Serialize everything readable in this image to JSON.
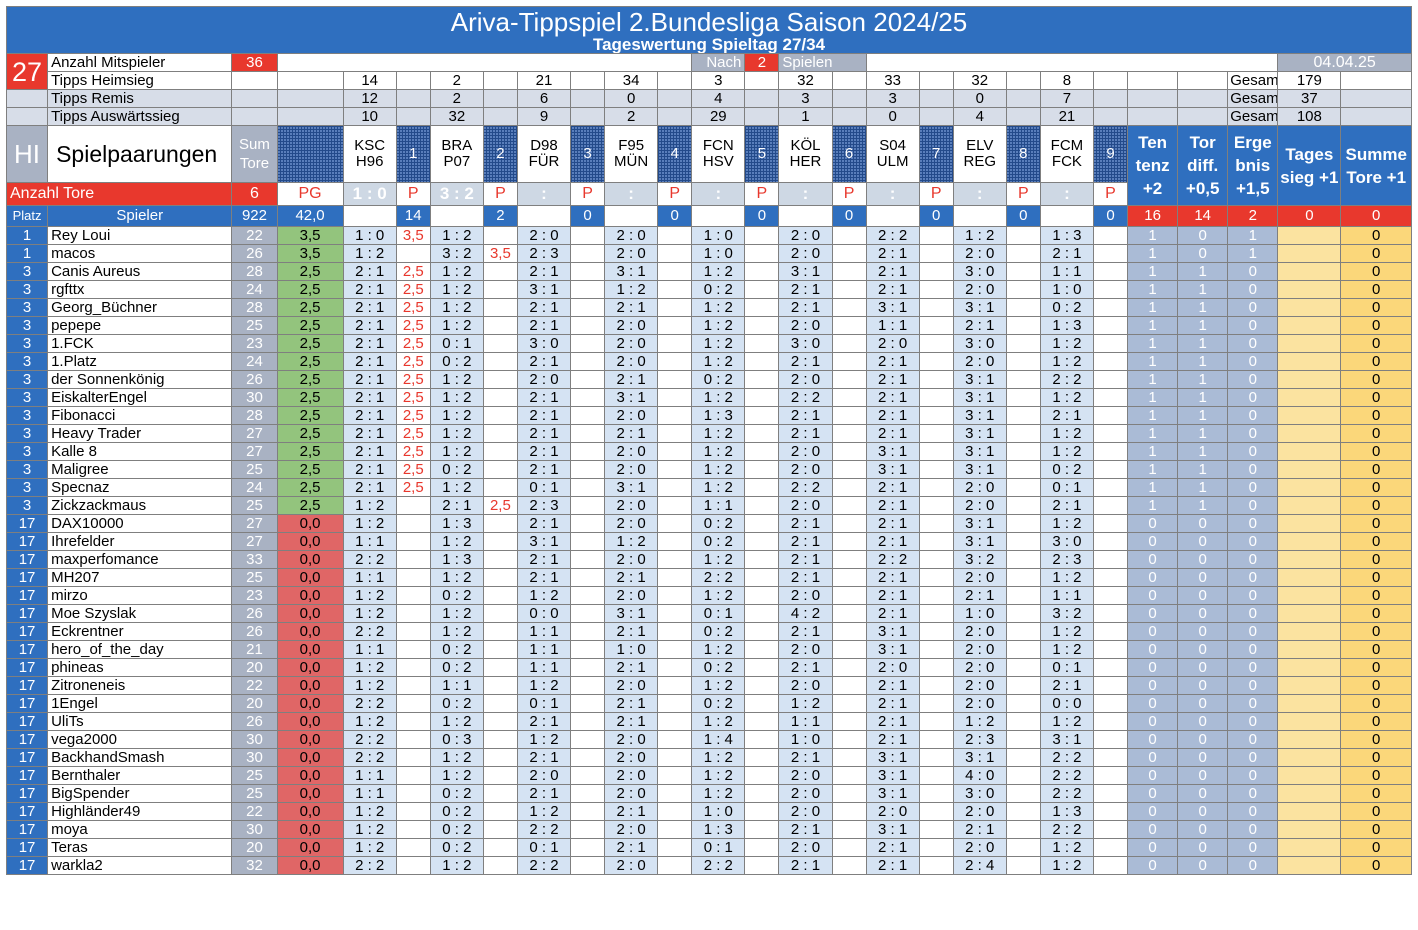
{
  "title": "Ariva-Tippspiel 2.Bundesliga Saison 2024/25",
  "subtitle": "Tageswertung Spieltag 27/34",
  "spieltag": "27",
  "date": "04.04.25",
  "mitspieler_label": "Anzahl Mitspieler",
  "mitspieler": "36",
  "nach_label": "Nach",
  "nach_value": "2",
  "spielen_label": "Spielen",
  "heim_label": "Tipps Heimsieg",
  "remis_label": "Tipps Remis",
  "aus_label": "Tipps Auswärtssieg",
  "gesamt_label": "Gesamt",
  "heim": [
    "14",
    "2",
    "21",
    "34",
    "3",
    "32",
    "33",
    "32",
    "8"
  ],
  "remis": [
    "12",
    "2",
    "6",
    "0",
    "4",
    "3",
    "3",
    "0",
    "7"
  ],
  "aus": [
    "10",
    "32",
    "9",
    "2",
    "29",
    "1",
    "0",
    "4",
    "21"
  ],
  "gesamt": [
    "179",
    "37",
    "108"
  ],
  "hi": "HI",
  "spielpaarungen": "Spielpaarungen",
  "sum_tore": "Sum Tore",
  "matches": [
    [
      "KSC",
      "H96"
    ],
    [
      "BRA",
      "P07"
    ],
    [
      "D98",
      "FÜR"
    ],
    [
      "F95",
      "MÜN"
    ],
    [
      "FCN",
      "HSV"
    ],
    [
      "KÖL",
      "HER"
    ],
    [
      "S04",
      "ULM"
    ],
    [
      "ELV",
      "REG"
    ],
    [
      "FCM",
      "FCK"
    ]
  ],
  "match_nums": [
    "1",
    "2",
    "3",
    "4",
    "5",
    "6",
    "7",
    "8",
    "9"
  ],
  "bonus_headers": [
    "Ten tenz +2",
    "Tor diff. +0,5",
    "Erge bnis +1,5",
    "Tages sieg +1",
    "Summe Tore +1"
  ],
  "anzahl_tore_label": "Anzahl Tore",
  "anzahl_tore": "6",
  "pg_label": "PG",
  "results": [
    "1 : 0",
    "3 : 2",
    ":",
    ":",
    ":",
    ":",
    ":",
    ":",
    ":"
  ],
  "p_label": "P",
  "platz_label": "Platz",
  "spieler_label": "Spieler",
  "total_tore": "922",
  "total_pg": "42,0",
  "match_points": [
    "14",
    "2",
    "0",
    "0",
    "0",
    "0",
    "0",
    "0",
    "0"
  ],
  "bonus_totals": [
    "16",
    "14",
    "2",
    "0",
    "0"
  ],
  "players": [
    {
      "platz": "1",
      "name": "Rey Loui",
      "tore": "22",
      "pg": "3,5",
      "tips": [
        "1 : 0",
        "1 : 2",
        "2 : 0",
        "2 : 0",
        "1 : 0",
        "2 : 0",
        "2 : 2",
        "1 : 2",
        "1 : 3"
      ],
      "p": [
        "3,5",
        "",
        "",
        "",
        "",
        "",
        "",
        "",
        ""
      ],
      "b": [
        "1",
        "0",
        "1",
        "",
        "0"
      ]
    },
    {
      "platz": "1",
      "name": "macos",
      "tore": "26",
      "pg": "3,5",
      "tips": [
        "1 : 2",
        "3 : 2",
        "2 : 3",
        "2 : 0",
        "1 : 0",
        "2 : 0",
        "2 : 1",
        "2 : 0",
        "2 : 1"
      ],
      "p": [
        "",
        "3,5",
        "",
        "",
        "",
        "",
        "",
        "",
        ""
      ],
      "b": [
        "1",
        "0",
        "1",
        "",
        "0"
      ]
    },
    {
      "platz": "3",
      "name": "Canis Aureus",
      "tore": "28",
      "pg": "2,5",
      "tips": [
        "2 : 1",
        "1 : 2",
        "2 : 1",
        "3 : 1",
        "1 : 2",
        "3 : 1",
        "2 : 1",
        "3 : 0",
        "1 : 1"
      ],
      "p": [
        "2,5",
        "",
        "",
        "",
        "",
        "",
        "",
        "",
        ""
      ],
      "b": [
        "1",
        "1",
        "0",
        "",
        "0"
      ]
    },
    {
      "platz": "3",
      "name": "rgfttx",
      "tore": "24",
      "pg": "2,5",
      "tips": [
        "2 : 1",
        "1 : 2",
        "3 : 1",
        "1 : 2",
        "0 : 2",
        "2 : 1",
        "2 : 1",
        "2 : 0",
        "1 : 0"
      ],
      "p": [
        "2,5",
        "",
        "",
        "",
        "",
        "",
        "",
        "",
        ""
      ],
      "b": [
        "1",
        "1",
        "0",
        "",
        "0"
      ]
    },
    {
      "platz": "3",
      "name": "Georg_Büchner",
      "tore": "28",
      "pg": "2,5",
      "tips": [
        "2 : 1",
        "1 : 2",
        "2 : 1",
        "2 : 1",
        "1 : 2",
        "2 : 1",
        "3 : 1",
        "3 : 1",
        "0 : 2"
      ],
      "p": [
        "2,5",
        "",
        "",
        "",
        "",
        "",
        "",
        "",
        ""
      ],
      "b": [
        "1",
        "1",
        "0",
        "",
        "0"
      ]
    },
    {
      "platz": "3",
      "name": "pepepe",
      "tore": "25",
      "pg": "2,5",
      "tips": [
        "2 : 1",
        "1 : 2",
        "2 : 1",
        "2 : 0",
        "1 : 2",
        "2 : 0",
        "1 : 1",
        "2 : 1",
        "1 : 3"
      ],
      "p": [
        "2,5",
        "",
        "",
        "",
        "",
        "",
        "",
        "",
        ""
      ],
      "b": [
        "1",
        "1",
        "0",
        "",
        "0"
      ]
    },
    {
      "platz": "3",
      "name": "1.FCK",
      "tore": "23",
      "pg": "2,5",
      "tips": [
        "2 : 1",
        "0 : 1",
        "3 : 0",
        "2 : 0",
        "1 : 2",
        "3 : 0",
        "2 : 0",
        "3 : 0",
        "1 : 2"
      ],
      "p": [
        "2,5",
        "",
        "",
        "",
        "",
        "",
        "",
        "",
        ""
      ],
      "b": [
        "1",
        "1",
        "0",
        "",
        "0"
      ]
    },
    {
      "platz": "3",
      "name": "1.Platz",
      "tore": "24",
      "pg": "2,5",
      "tips": [
        "2 : 1",
        "0 : 2",
        "2 : 1",
        "2 : 0",
        "1 : 2",
        "2 : 1",
        "2 : 1",
        "2 : 0",
        "1 : 2"
      ],
      "p": [
        "2,5",
        "",
        "",
        "",
        "",
        "",
        "",
        "",
        ""
      ],
      "b": [
        "1",
        "1",
        "0",
        "",
        "0"
      ]
    },
    {
      "platz": "3",
      "name": "der Sonnenkönig",
      "tore": "26",
      "pg": "2,5",
      "tips": [
        "2 : 1",
        "1 : 2",
        "2 : 0",
        "2 : 1",
        "0 : 2",
        "2 : 0",
        "2 : 1",
        "3 : 1",
        "2 : 2"
      ],
      "p": [
        "2,5",
        "",
        "",
        "",
        "",
        "",
        "",
        "",
        ""
      ],
      "b": [
        "1",
        "1",
        "0",
        "",
        "0"
      ]
    },
    {
      "platz": "3",
      "name": "EiskalterEngel",
      "tore": "30",
      "pg": "2,5",
      "tips": [
        "2 : 1",
        "1 : 2",
        "2 : 1",
        "3 : 1",
        "1 : 2",
        "2 : 2",
        "2 : 1",
        "3 : 1",
        "1 : 2"
      ],
      "p": [
        "2,5",
        "",
        "",
        "",
        "",
        "",
        "",
        "",
        ""
      ],
      "b": [
        "1",
        "1",
        "0",
        "",
        "0"
      ]
    },
    {
      "platz": "3",
      "name": "Fibonacci",
      "tore": "28",
      "pg": "2,5",
      "tips": [
        "2 : 1",
        "1 : 2",
        "2 : 1",
        "2 : 0",
        "1 : 3",
        "2 : 1",
        "2 : 1",
        "3 : 1",
        "2 : 1"
      ],
      "p": [
        "2,5",
        "",
        "",
        "",
        "",
        "",
        "",
        "",
        ""
      ],
      "b": [
        "1",
        "1",
        "0",
        "",
        "0"
      ]
    },
    {
      "platz": "3",
      "name": "Heavy Trader",
      "tore": "27",
      "pg": "2,5",
      "tips": [
        "2 : 1",
        "1 : 2",
        "2 : 1",
        "2 : 1",
        "1 : 2",
        "2 : 1",
        "2 : 1",
        "3 : 1",
        "1 : 2"
      ],
      "p": [
        "2,5",
        "",
        "",
        "",
        "",
        "",
        "",
        "",
        ""
      ],
      "b": [
        "1",
        "1",
        "0",
        "",
        "0"
      ]
    },
    {
      "platz": "3",
      "name": "Kalle 8",
      "tore": "27",
      "pg": "2,5",
      "tips": [
        "2 : 1",
        "1 : 2",
        "2 : 1",
        "2 : 0",
        "1 : 2",
        "2 : 0",
        "3 : 1",
        "3 : 1",
        "1 : 2"
      ],
      "p": [
        "2,5",
        "",
        "",
        "",
        "",
        "",
        "",
        "",
        ""
      ],
      "b": [
        "1",
        "1",
        "0",
        "",
        "0"
      ]
    },
    {
      "platz": "3",
      "name": "Maligree",
      "tore": "25",
      "pg": "2,5",
      "tips": [
        "2 : 1",
        "0 : 2",
        "2 : 1",
        "2 : 0",
        "1 : 2",
        "2 : 0",
        "3 : 1",
        "3 : 1",
        "0 : 2"
      ],
      "p": [
        "2,5",
        "",
        "",
        "",
        "",
        "",
        "",
        "",
        ""
      ],
      "b": [
        "1",
        "1",
        "0",
        "",
        "0"
      ]
    },
    {
      "platz": "3",
      "name": "Specnaz",
      "tore": "24",
      "pg": "2,5",
      "tips": [
        "2 : 1",
        "1 : 2",
        "0 : 1",
        "3 : 1",
        "1 : 2",
        "2 : 2",
        "2 : 1",
        "2 : 0",
        "0 : 1"
      ],
      "p": [
        "2,5",
        "",
        "",
        "",
        "",
        "",
        "",
        "",
        ""
      ],
      "b": [
        "1",
        "1",
        "0",
        "",
        "0"
      ]
    },
    {
      "platz": "3",
      "name": "Zickzackmaus",
      "tore": "25",
      "pg": "2,5",
      "tips": [
        "1 : 2",
        "2 : 1",
        "2 : 3",
        "2 : 0",
        "1 : 1",
        "2 : 0",
        "2 : 1",
        "2 : 0",
        "2 : 1"
      ],
      "p": [
        "",
        "2,5",
        "",
        "",
        "",
        "",
        "",
        "",
        ""
      ],
      "b": [
        "1",
        "1",
        "0",
        "",
        "0"
      ]
    },
    {
      "platz": "17",
      "name": "DAX10000",
      "tore": "27",
      "pg": "0,0",
      "tips": [
        "1 : 2",
        "1 : 3",
        "2 : 1",
        "2 : 0",
        "0 : 2",
        "2 : 1",
        "2 : 1",
        "3 : 1",
        "1 : 2"
      ],
      "p": [
        "",
        "",
        "",
        "",
        "",
        "",
        "",
        "",
        ""
      ],
      "b": [
        "0",
        "0",
        "0",
        "",
        "0"
      ]
    },
    {
      "platz": "17",
      "name": "Ihrefelder",
      "tore": "27",
      "pg": "0,0",
      "tips": [
        "1 : 1",
        "1 : 2",
        "3 : 1",
        "1 : 2",
        "0 : 2",
        "2 : 1",
        "2 : 1",
        "3 : 1",
        "3 : 0"
      ],
      "p": [
        "",
        "",
        "",
        "",
        "",
        "",
        "",
        "",
        ""
      ],
      "b": [
        "0",
        "0",
        "0",
        "",
        "0"
      ]
    },
    {
      "platz": "17",
      "name": "maxperfomance",
      "tore": "33",
      "pg": "0,0",
      "tips": [
        "2 : 2",
        "1 : 3",
        "2 : 1",
        "2 : 0",
        "1 : 2",
        "2 : 1",
        "2 : 2",
        "3 : 2",
        "2 : 3"
      ],
      "p": [
        "",
        "",
        "",
        "",
        "",
        "",
        "",
        "",
        ""
      ],
      "b": [
        "0",
        "0",
        "0",
        "",
        "0"
      ]
    },
    {
      "platz": "17",
      "name": "MH207",
      "tore": "25",
      "pg": "0,0",
      "tips": [
        "1 : 1",
        "1 : 2",
        "2 : 1",
        "2 : 1",
        "2 : 2",
        "2 : 1",
        "2 : 1",
        "2 : 0",
        "1 : 2"
      ],
      "p": [
        "",
        "",
        "",
        "",
        "",
        "",
        "",
        "",
        ""
      ],
      "b": [
        "0",
        "0",
        "0",
        "",
        "0"
      ]
    },
    {
      "platz": "17",
      "name": "mirzo",
      "tore": "23",
      "pg": "0,0",
      "tips": [
        "1 : 2",
        "0 : 2",
        "1 : 2",
        "2 : 0",
        "1 : 2",
        "2 : 0",
        "2 : 1",
        "2 : 1",
        "1 : 1"
      ],
      "p": [
        "",
        "",
        "",
        "",
        "",
        "",
        "",
        "",
        ""
      ],
      "b": [
        "0",
        "0",
        "0",
        "",
        "0"
      ]
    },
    {
      "platz": "17",
      "name": "Moe Szyslak",
      "tore": "26",
      "pg": "0,0",
      "tips": [
        "1 : 2",
        "1 : 2",
        "0 : 0",
        "3 : 1",
        "0 : 1",
        "4 : 2",
        "2 : 1",
        "1 : 0",
        "3 : 2"
      ],
      "p": [
        "",
        "",
        "",
        "",
        "",
        "",
        "",
        "",
        ""
      ],
      "b": [
        "0",
        "0",
        "0",
        "",
        "0"
      ]
    },
    {
      "platz": "17",
      "name": "Eckrentner",
      "tore": "26",
      "pg": "0,0",
      "tips": [
        "2 : 2",
        "1 : 2",
        "1 : 1",
        "2 : 1",
        "0 : 2",
        "2 : 1",
        "3 : 1",
        "2 : 0",
        "1 : 2"
      ],
      "p": [
        "",
        "",
        "",
        "",
        "",
        "",
        "",
        "",
        ""
      ],
      "b": [
        "0",
        "0",
        "0",
        "",
        "0"
      ]
    },
    {
      "platz": "17",
      "name": "hero_of_the_day",
      "tore": "21",
      "pg": "0,0",
      "tips": [
        "1 : 1",
        "0 : 2",
        "1 : 1",
        "1 : 0",
        "1 : 2",
        "2 : 0",
        "3 : 1",
        "2 : 0",
        "1 : 2"
      ],
      "p": [
        "",
        "",
        "",
        "",
        "",
        "",
        "",
        "",
        ""
      ],
      "b": [
        "0",
        "0",
        "0",
        "",
        "0"
      ]
    },
    {
      "platz": "17",
      "name": "phineas",
      "tore": "20",
      "pg": "0,0",
      "tips": [
        "1 : 2",
        "0 : 2",
        "1 : 1",
        "2 : 1",
        "0 : 2",
        "2 : 1",
        "2 : 0",
        "2 : 0",
        "0 : 1"
      ],
      "p": [
        "",
        "",
        "",
        "",
        "",
        "",
        "",
        "",
        ""
      ],
      "b": [
        "0",
        "0",
        "0",
        "",
        "0"
      ]
    },
    {
      "platz": "17",
      "name": "Zitroneneis",
      "tore": "22",
      "pg": "0,0",
      "tips": [
        "1 : 2",
        "1 : 1",
        "1 : 2",
        "2 : 0",
        "1 : 2",
        "2 : 0",
        "2 : 1",
        "2 : 0",
        "2 : 1"
      ],
      "p": [
        "",
        "",
        "",
        "",
        "",
        "",
        "",
        "",
        ""
      ],
      "b": [
        "0",
        "0",
        "0",
        "",
        "0"
      ]
    },
    {
      "platz": "17",
      "name": "1Engel",
      "tore": "20",
      "pg": "0,0",
      "tips": [
        "2 : 2",
        "0 : 2",
        "0 : 1",
        "2 : 1",
        "0 : 2",
        "1 : 2",
        "2 : 1",
        "2 : 0",
        "0 : 0"
      ],
      "p": [
        "",
        "",
        "",
        "",
        "",
        "",
        "",
        "",
        ""
      ],
      "b": [
        "0",
        "0",
        "0",
        "",
        "0"
      ]
    },
    {
      "platz": "17",
      "name": "UliTs",
      "tore": "26",
      "pg": "0,0",
      "tips": [
        "1 : 2",
        "1 : 2",
        "2 : 1",
        "2 : 1",
        "1 : 2",
        "1 : 1",
        "2 : 1",
        "1 : 2",
        "1 : 2"
      ],
      "p": [
        "",
        "",
        "",
        "",
        "",
        "",
        "",
        "",
        ""
      ],
      "b": [
        "0",
        "0",
        "0",
        "",
        "0"
      ]
    },
    {
      "platz": "17",
      "name": "vega2000",
      "tore": "30",
      "pg": "0,0",
      "tips": [
        "2 : 2",
        "0 : 3",
        "1 : 2",
        "2 : 0",
        "1 : 4",
        "1 : 0",
        "2 : 1",
        "2 : 3",
        "3 : 1"
      ],
      "p": [
        "",
        "",
        "",
        "",
        "",
        "",
        "",
        "",
        ""
      ],
      "b": [
        "0",
        "0",
        "0",
        "",
        "0"
      ]
    },
    {
      "platz": "17",
      "name": "BackhandSmash",
      "tore": "30",
      "pg": "0,0",
      "tips": [
        "2 : 2",
        "1 : 2",
        "2 : 1",
        "2 : 0",
        "1 : 2",
        "2 : 1",
        "3 : 1",
        "3 : 1",
        "2 : 2"
      ],
      "p": [
        "",
        "",
        "",
        "",
        "",
        "",
        "",
        "",
        ""
      ],
      "b": [
        "0",
        "0",
        "0",
        "",
        "0"
      ]
    },
    {
      "platz": "17",
      "name": "Bernthaler",
      "tore": "25",
      "pg": "0,0",
      "tips": [
        "1 : 1",
        "1 : 2",
        "2 : 0",
        "2 : 0",
        "1 : 2",
        "2 : 0",
        "3 : 1",
        "4 : 0",
        "2 : 2"
      ],
      "p": [
        "",
        "",
        "",
        "",
        "",
        "",
        "",
        "",
        ""
      ],
      "b": [
        "0",
        "0",
        "0",
        "",
        "0"
      ]
    },
    {
      "platz": "17",
      "name": "BigSpender",
      "tore": "25",
      "pg": "0,0",
      "tips": [
        "1 : 1",
        "0 : 2",
        "2 : 1",
        "2 : 0",
        "1 : 2",
        "2 : 0",
        "3 : 1",
        "3 : 0",
        "2 : 2"
      ],
      "p": [
        "",
        "",
        "",
        "",
        "",
        "",
        "",
        "",
        ""
      ],
      "b": [
        "0",
        "0",
        "0",
        "",
        "0"
      ]
    },
    {
      "platz": "17",
      "name": "Highländer49",
      "tore": "22",
      "pg": "0,0",
      "tips": [
        "1 : 2",
        "0 : 2",
        "1 : 2",
        "2 : 1",
        "1 : 0",
        "2 : 0",
        "2 : 0",
        "2 : 0",
        "1 : 3"
      ],
      "p": [
        "",
        "",
        "",
        "",
        "",
        "",
        "",
        "",
        ""
      ],
      "b": [
        "0",
        "0",
        "0",
        "",
        "0"
      ]
    },
    {
      "platz": "17",
      "name": "moya",
      "tore": "30",
      "pg": "0,0",
      "tips": [
        "1 : 2",
        "0 : 2",
        "2 : 2",
        "2 : 0",
        "1 : 3",
        "2 : 1",
        "3 : 1",
        "2 : 1",
        "2 : 2"
      ],
      "p": [
        "",
        "",
        "",
        "",
        "",
        "",
        "",
        "",
        ""
      ],
      "b": [
        "0",
        "0",
        "0",
        "",
        "0"
      ]
    },
    {
      "platz": "17",
      "name": "Teras",
      "tore": "20",
      "pg": "0,0",
      "tips": [
        "1 : 2",
        "0 : 2",
        "0 : 1",
        "2 : 1",
        "0 : 1",
        "2 : 0",
        "2 : 1",
        "2 : 0",
        "1 : 2"
      ],
      "p": [
        "",
        "",
        "",
        "",
        "",
        "",
        "",
        "",
        ""
      ],
      "b": [
        "0",
        "0",
        "0",
        "",
        "0"
      ]
    },
    {
      "platz": "17",
      "name": "warkla2",
      "tore": "32",
      "pg": "0,0",
      "tips": [
        "2 : 2",
        "1 : 2",
        "2 : 2",
        "2 : 0",
        "2 : 2",
        "2 : 1",
        "2 : 1",
        "2 : 4",
        "1 : 2"
      ],
      "p": [
        "",
        "",
        "",
        "",
        "",
        "",
        "",
        "",
        ""
      ],
      "b": [
        "0",
        "0",
        "0",
        "",
        "0"
      ]
    }
  ]
}
